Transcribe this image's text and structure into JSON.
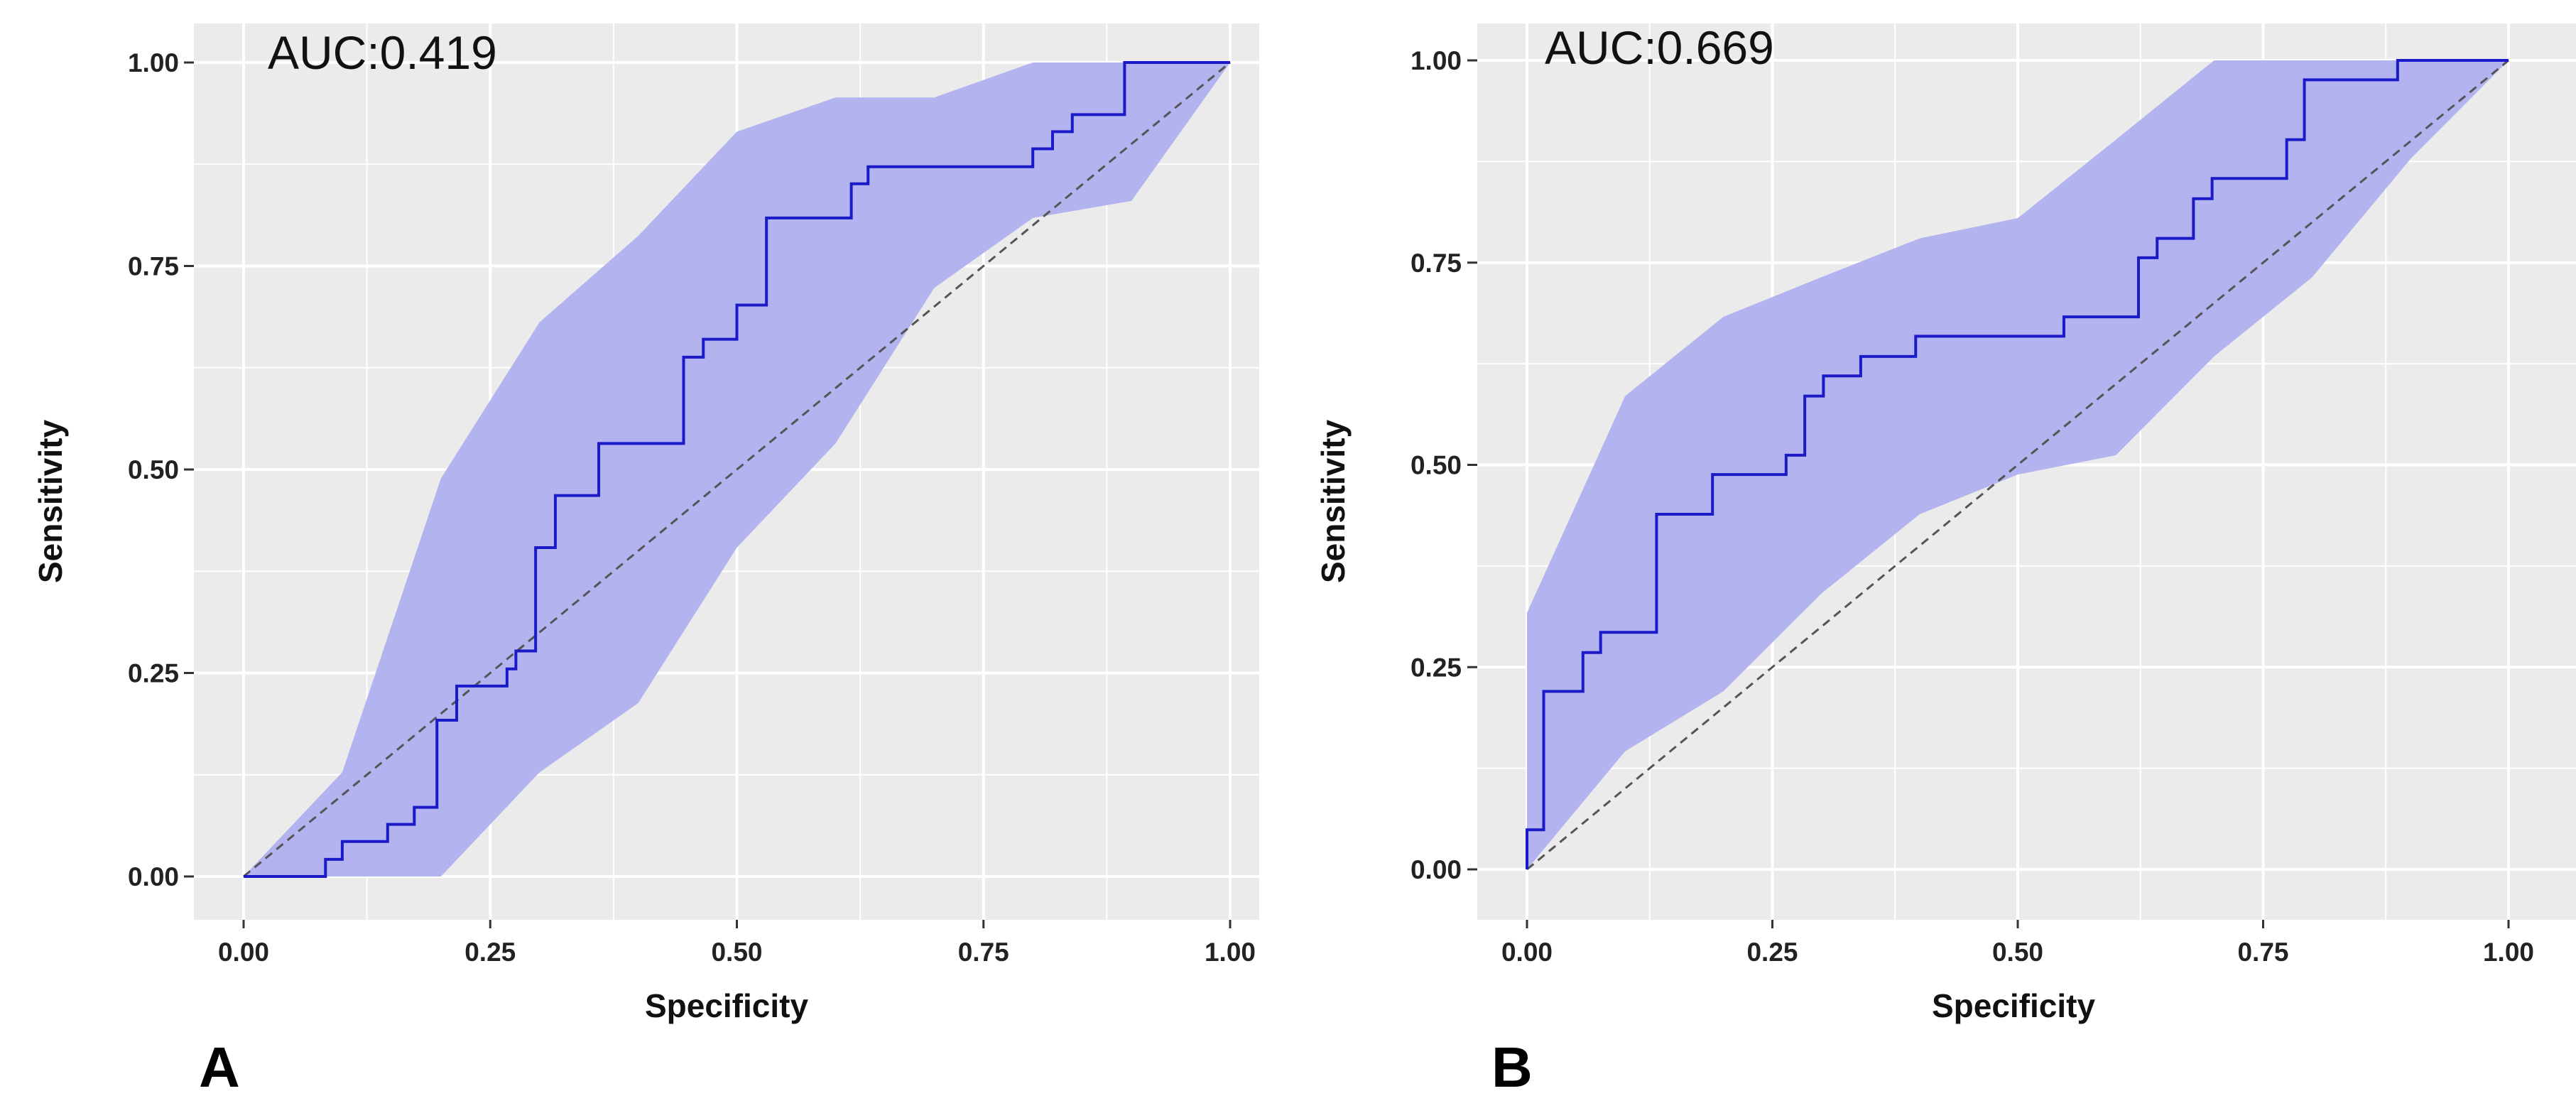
{
  "chart_data": [
    {
      "type": "line",
      "panel_label": "A",
      "title": "AUC:0.419",
      "xlabel": "Specificity",
      "ylabel": "Sensitivity",
      "xlim": [
        0,
        1
      ],
      "ylim": [
        0,
        1
      ],
      "xticks": [
        "0.00",
        "0.25",
        "0.50",
        "0.75",
        "1.00"
      ],
      "yticks": [
        "0.00",
        "0.25",
        "0.50",
        "0.75",
        "1.00"
      ],
      "grid": true,
      "colors": {
        "panel_bg": "#ebebeb",
        "grid": "#ffffff",
        "ci_band": "#b3b3f0",
        "roc_line": "#1a1ac8",
        "diagonal": "#555555"
      },
      "series": [
        {
          "name": "roc_curve",
          "x": [
            0,
            0.083,
            0.083,
            0.1,
            0.1,
            0.146,
            0.146,
            0.173,
            0.173,
            0.196,
            0.196,
            0.216,
            0.216,
            0.267,
            0.267,
            0.276,
            0.276,
            0.296,
            0.296,
            0.316,
            0.316,
            0.36,
            0.36,
            0.446,
            0.446,
            0.466,
            0.466,
            0.5,
            0.5,
            0.53,
            0.53,
            0.616,
            0.616,
            0.633,
            0.633,
            0.8,
            0.8,
            0.82,
            0.82,
            0.84,
            0.84,
            0.893,
            0.893,
            1.0
          ],
          "y": [
            0,
            0,
            0.021,
            0.021,
            0.043,
            0.043,
            0.064,
            0.064,
            0.085,
            0.085,
            0.192,
            0.192,
            0.234,
            0.234,
            0.255,
            0.255,
            0.277,
            0.277,
            0.404,
            0.404,
            0.468,
            0.468,
            0.532,
            0.532,
            0.638,
            0.638,
            0.66,
            0.66,
            0.702,
            0.702,
            0.809,
            0.809,
            0.851,
            0.851,
            0.872,
            0.872,
            0.894,
            0.894,
            0.915,
            0.915,
            0.936,
            0.936,
            1.0,
            1.0
          ]
        },
        {
          "name": "ci_upper",
          "x": [
            0,
            0.1,
            0.2,
            0.3,
            0.4,
            0.5,
            0.6,
            0.7,
            0.8,
            1.0
          ],
          "y": [
            0,
            0.128,
            0.489,
            0.681,
            0.787,
            0.915,
            0.957,
            0.957,
            1.0,
            1.0
          ]
        },
        {
          "name": "ci_lower",
          "x": [
            0,
            0.2,
            0.3,
            0.4,
            0.5,
            0.6,
            0.7,
            0.8,
            0.9,
            1.0
          ],
          "y": [
            0,
            0,
            0.128,
            0.213,
            0.404,
            0.532,
            0.723,
            0.809,
            0.83,
            1.0
          ]
        },
        {
          "name": "diagonal",
          "x": [
            0,
            1
          ],
          "y": [
            0,
            1
          ]
        }
      ]
    },
    {
      "type": "line",
      "panel_label": "B",
      "title": "AUC:0.669",
      "xlabel": "Specificity",
      "ylabel": "Sensitivity",
      "xlim": [
        0,
        1
      ],
      "ylim": [
        0,
        1
      ],
      "xticks": [
        "0.00",
        "0.25",
        "0.50",
        "0.75",
        "1.00"
      ],
      "yticks": [
        "0.00",
        "0.25",
        "0.50",
        "0.75",
        "1.00"
      ],
      "grid": true,
      "colors": {
        "panel_bg": "#ebebeb",
        "grid": "#ffffff",
        "ci_band": "#b3b3f0",
        "roc_line": "#1a1ac8",
        "diagonal": "#555555"
      },
      "series": [
        {
          "name": "roc_curve",
          "x": [
            0,
            0,
            0.017,
            0.017,
            0.057,
            0.057,
            0.075,
            0.075,
            0.132,
            0.132,
            0.189,
            0.189,
            0.264,
            0.264,
            0.283,
            0.283,
            0.302,
            0.302,
            0.34,
            0.34,
            0.396,
            0.396,
            0.547,
            0.547,
            0.623,
            0.623,
            0.642,
            0.642,
            0.679,
            0.679,
            0.698,
            0.698,
            0.774,
            0.774,
            0.792,
            0.792,
            0.887,
            0.887,
            1.0
          ],
          "y": [
            0,
            0.049,
            0.049,
            0.22,
            0.22,
            0.268,
            0.268,
            0.293,
            0.293,
            0.439,
            0.439,
            0.488,
            0.488,
            0.512,
            0.512,
            0.585,
            0.585,
            0.61,
            0.61,
            0.634,
            0.634,
            0.659,
            0.659,
            0.683,
            0.683,
            0.756,
            0.756,
            0.78,
            0.78,
            0.829,
            0.829,
            0.854,
            0.854,
            0.902,
            0.902,
            0.976,
            0.976,
            1.0,
            1.0
          ]
        },
        {
          "name": "ci_upper",
          "x": [
            0,
            0,
            0.1,
            0.2,
            0.3,
            0.4,
            0.5,
            0.6,
            0.7,
            1.0
          ],
          "y": [
            0,
            0.317,
            0.585,
            0.683,
            0.732,
            0.78,
            0.805,
            0.902,
            1.0,
            1.0
          ]
        },
        {
          "name": "ci_lower",
          "x": [
            0,
            0.1,
            0.2,
            0.3,
            0.4,
            0.5,
            0.6,
            0.7,
            0.8,
            0.9,
            1.0
          ],
          "y": [
            0,
            0.146,
            0.22,
            0.341,
            0.439,
            0.488,
            0.512,
            0.634,
            0.732,
            0.878,
            1.0
          ]
        },
        {
          "name": "diagonal",
          "x": [
            0,
            1
          ],
          "y": [
            0,
            1
          ]
        }
      ]
    }
  ]
}
